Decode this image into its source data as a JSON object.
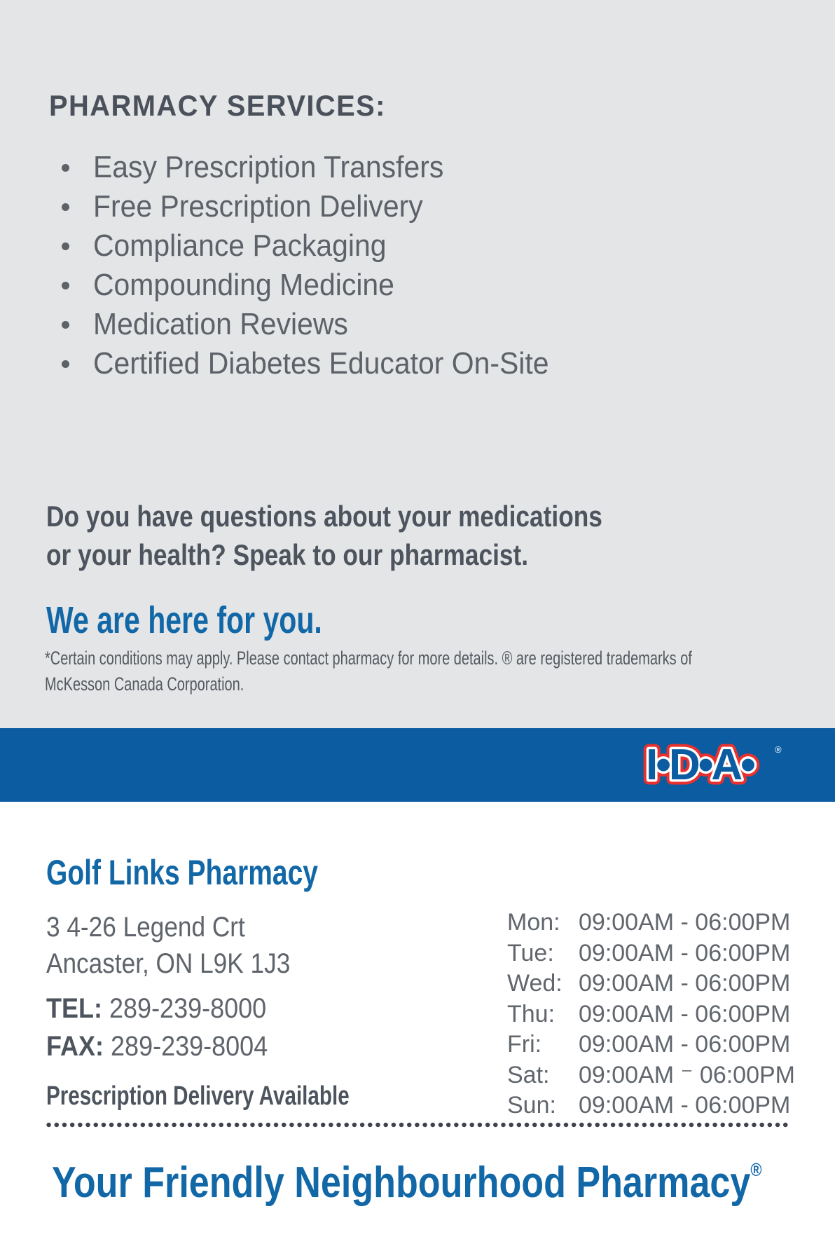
{
  "colors": {
    "section_bg": "#e4e5e7",
    "band_blue": "#0b5ca1",
    "accent_blue": "#1268a7",
    "logo_red": "#e8312e",
    "text_dark": "#4b515b",
    "text_gray": "#5d6269"
  },
  "services": {
    "heading": "PHARMACY SERVICES:",
    "items": [
      "Easy Prescription Transfers",
      "Free Prescription Delivery",
      "Compliance Packaging",
      "Compounding Medicine",
      "Medication Reviews",
      "Certified Diabetes Educator On-Site"
    ]
  },
  "message": {
    "question_line1": "Do you have questions about your medications",
    "question_line2": "or your health? Speak to our pharmacist.",
    "support_tagline": "We are here for you.",
    "disclaimer_line1": "*Certain conditions may apply. Please contact pharmacy for more details. ® are registered trademarks of",
    "disclaimer_line2": "McKesson Canada Corporation."
  },
  "brand": {
    "logo_text": "I•D•A•",
    "registered_mark": "®"
  },
  "pharmacy": {
    "name": "Golf Links Pharmacy",
    "address_line1": "3 4-26 Legend Crt",
    "address_line2": "Ancaster, ON L9K 1J3",
    "tel_label": "TEL:",
    "tel_number": "289-239-8000",
    "fax_label": "FAX:",
    "fax_number": "289-239-8004",
    "delivery_note": "Prescription Delivery Available"
  },
  "hours": {
    "rows": [
      {
        "day": "Mon:",
        "time": "09:00AM - 06:00PM"
      },
      {
        "day": "Tue:",
        "time": "09:00AM - 06:00PM"
      },
      {
        "day": "Wed:",
        "time": "09:00AM - 06:00PM"
      },
      {
        "day": "Thu:",
        "time": "09:00AM - 06:00PM"
      },
      {
        "day": "Fri:",
        "time": "09:00AM - 06:00PM"
      },
      {
        "day": "Sat:",
        "time": "09:00AM ⁻ 06:00PM"
      },
      {
        "day": "Sun:",
        "time": "09:00AM - 06:00PM"
      }
    ]
  },
  "footer": {
    "tagline": "Your Friendly Neighbourhood Pharmacy",
    "registered_mark": "®"
  }
}
